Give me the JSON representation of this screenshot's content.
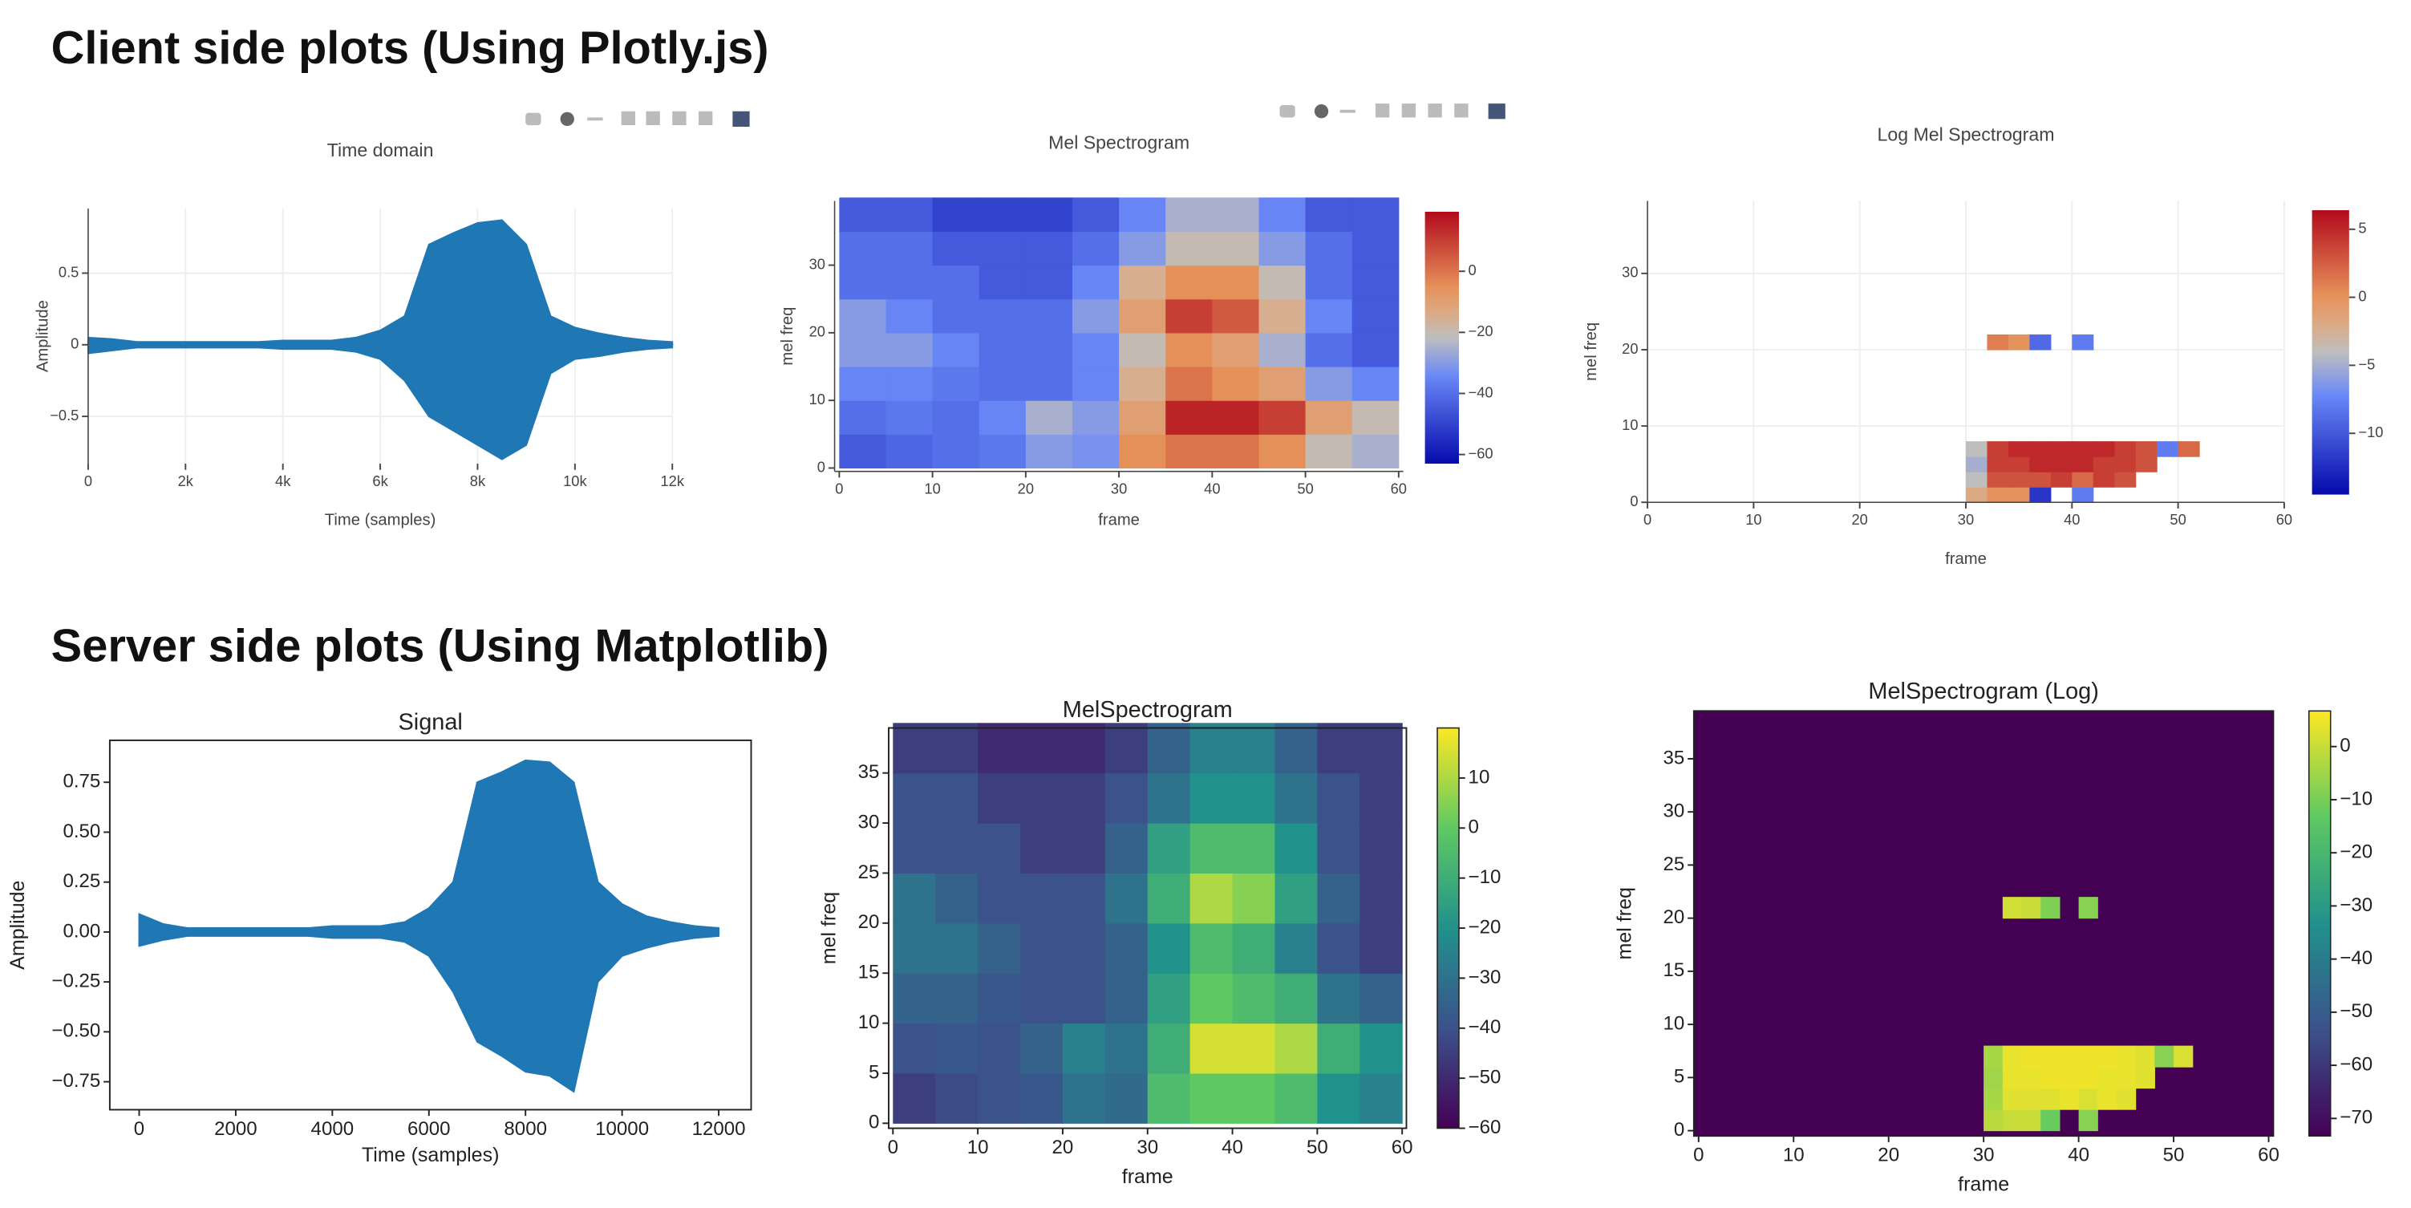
{
  "headings": [
    "Client side plots (Using Plotly.js)",
    "Server side plots (Using Matplotlib)"
  ],
  "chart_data": [
    {
      "type": "area",
      "title": "Time domain",
      "x_label": "Time (samples)",
      "y_label": "Amplitude",
      "grid": true,
      "frame": false,
      "x": [
        0,
        500,
        1000,
        1500,
        2000,
        2500,
        3000,
        3500,
        4000,
        4500,
        5000,
        5500,
        6000,
        6500,
        7000,
        7500,
        8000,
        8500,
        9000,
        9500,
        10000,
        10500,
        11000,
        11500,
        12000
      ],
      "series": [
        {
          "color": "#1f77b4",
          "values": [
            0.05,
            0.04,
            0.02,
            0.02,
            0.02,
            0.02,
            0.02,
            0.02,
            0.03,
            0.03,
            0.03,
            0.05,
            0.1,
            0.2,
            0.7,
            0.78,
            0.85,
            0.87,
            0.7,
            0.2,
            0.12,
            0.08,
            0.05,
            0.03,
            0.02
          ]
        },
        {
          "color": "#1f77b4",
          "values": [
            -0.06,
            -0.04,
            -0.02,
            -0.02,
            -0.02,
            -0.02,
            -0.02,
            -0.02,
            -0.03,
            -0.03,
            -0.03,
            -0.05,
            -0.1,
            -0.25,
            -0.5,
            -0.6,
            -0.7,
            -0.8,
            -0.7,
            -0.2,
            -0.1,
            -0.08,
            -0.05,
            -0.03,
            -0.02
          ]
        }
      ],
      "xlim": [
        0,
        12000
      ],
      "xticks": [
        0,
        {
          "value": 2000,
          "label": "2k"
        },
        {
          "value": 4000,
          "label": "4k"
        },
        {
          "value": 6000,
          "label": "6k"
        },
        {
          "value": 8000,
          "label": "8k"
        },
        {
          "value": 10000,
          "label": "10k"
        },
        {
          "value": 12000,
          "label": "12k"
        }
      ],
      "ylim": [
        -0.83,
        0.95
      ],
      "yticks": [
        {
          "value": -0.5,
          "label": "−0.5"
        },
        0,
        0.5
      ]
    },
    {
      "type": "heatmap",
      "title": "Mel Spectrogram",
      "x_label": "frame",
      "y_label": "mel freq",
      "grid": false,
      "frame": false,
      "colorscale": [
        [
          0,
          "#050aac"
        ],
        [
          0.35,
          "#6a89f7"
        ],
        [
          0.5,
          "#bebebe"
        ],
        [
          0.6,
          "#dcaa84"
        ],
        [
          0.7,
          "#e6915a"
        ],
        [
          1,
          "#b20a1c"
        ]
      ],
      "x": [
        2.5,
        7.5,
        12.5,
        17.5,
        22.5,
        27.5,
        32.5,
        37.5,
        42.5,
        47.5,
        52.5,
        57.5
      ],
      "y": [
        2.5,
        7.5,
        12.5,
        17.5,
        22.5,
        27.5,
        32.5,
        37.5
      ],
      "z": [
        [
          -45,
          -42,
          -40,
          -38,
          -30,
          -32,
          -5,
          0,
          0,
          -5,
          -20,
          -25
        ],
        [
          -40,
          -38,
          -40,
          -35,
          -25,
          -30,
          -10,
          15,
          15,
          10,
          -10,
          -20
        ],
        [
          -35,
          -35,
          -38,
          -40,
          -40,
          -35,
          -15,
          0,
          -5,
          -10,
          -30,
          -35
        ],
        [
          -30,
          -30,
          -35,
          -40,
          -40,
          -35,
          -20,
          -5,
          -10,
          -25,
          -40,
          -45
        ],
        [
          -30,
          -35,
          -40,
          -40,
          -40,
          -30,
          -10,
          10,
          5,
          -15,
          -35,
          -45
        ],
        [
          -40,
          -40,
          -40,
          -45,
          -45,
          -35,
          -15,
          -5,
          -5,
          -20,
          -40,
          -45
        ],
        [
          -40,
          -40,
          -45,
          -45,
          -45,
          -40,
          -30,
          -20,
          -20,
          -30,
          -40,
          -45
        ],
        [
          -45,
          -45,
          -50,
          -50,
          -50,
          -45,
          -35,
          -25,
          -25,
          -35,
          -45,
          -45
        ]
      ],
      "xlim": [
        -0.5,
        60.5
      ],
      "xticks": [
        0,
        10,
        20,
        30,
        40,
        50,
        60
      ],
      "ylim": [
        -0.5,
        39.5
      ],
      "yticks": [
        0,
        10,
        20,
        30
      ],
      "zlim": [
        -63,
        19.5
      ],
      "zticks": [
        0,
        {
          "value": -20,
          "label": "−20"
        },
        {
          "value": -40,
          "label": "−40"
        },
        {
          "value": -60,
          "label": "−60"
        }
      ]
    },
    {
      "type": "heatmap",
      "title": "Log Mel Spectrogram",
      "x_label": "frame",
      "y_label": "mel freq",
      "grid": true,
      "frame": false,
      "colorscale": [
        [
          0,
          "#050aac"
        ],
        [
          0.35,
          "#6a89f7"
        ],
        [
          0.5,
          "#bebebe"
        ],
        [
          0.6,
          "#dcaa84"
        ],
        [
          0.7,
          "#e6915a"
        ],
        [
          1,
          "#b20a1c"
        ]
      ],
      "x": [
        31,
        33,
        35,
        37,
        39,
        41,
        43,
        45,
        47,
        49,
        51,
        53
      ],
      "y": [
        1,
        3,
        5,
        7,
        21
      ],
      "z": [
        [
          -2,
          0,
          0,
          -12,
          null,
          -8,
          null,
          null,
          null,
          null,
          null,
          null
        ],
        [
          -4,
          3,
          3,
          3,
          4,
          2,
          4,
          3,
          null,
          null,
          null,
          null
        ],
        [
          -5,
          4,
          4,
          5,
          5,
          5,
          4,
          4,
          3,
          null,
          null,
          null
        ],
        [
          -4,
          4,
          5,
          5,
          5,
          5,
          5,
          4,
          3,
          -8,
          2,
          null
        ],
        [
          null,
          1,
          0,
          -9,
          null,
          -8,
          null,
          null,
          null,
          null,
          null,
          null
        ]
      ],
      "xlim": [
        0,
        60
      ],
      "xticks": [
        0,
        10,
        20,
        30,
        40,
        50,
        60
      ],
      "ylim": [
        0,
        39.5
      ],
      "yticks": [
        0,
        10,
        20,
        30
      ],
      "zlim": [
        -14.5,
        6.4
      ],
      "zticks": [
        5,
        0,
        {
          "value": -5,
          "label": "−5"
        },
        {
          "value": -10,
          "label": "−10"
        }
      ]
    },
    {
      "type": "area",
      "title": "Signal",
      "x_label": "Time (samples)",
      "y_label": "Amplitude",
      "grid": false,
      "frame": true,
      "x": [
        0,
        500,
        1000,
        1500,
        2000,
        2500,
        3000,
        3500,
        4000,
        4500,
        5000,
        5500,
        6000,
        6500,
        7000,
        7500,
        8000,
        8500,
        9000,
        9500,
        10000,
        10500,
        11000,
        11500,
        12000
      ],
      "series": [
        {
          "color": "#1f77b4",
          "values": [
            0.09,
            0.04,
            0.02,
            0.02,
            0.02,
            0.02,
            0.02,
            0.02,
            0.03,
            0.03,
            0.03,
            0.05,
            0.12,
            0.25,
            0.75,
            0.8,
            0.86,
            0.85,
            0.75,
            0.25,
            0.14,
            0.08,
            0.05,
            0.03,
            0.02
          ]
        },
        {
          "color": "#1f77b4",
          "values": [
            -0.07,
            -0.04,
            -0.02,
            -0.02,
            -0.02,
            -0.02,
            -0.02,
            -0.02,
            -0.03,
            -0.03,
            -0.03,
            -0.05,
            -0.12,
            -0.3,
            -0.55,
            -0.62,
            -0.7,
            -0.72,
            -0.8,
            -0.25,
            -0.12,
            -0.08,
            -0.05,
            -0.03,
            -0.02
          ]
        }
      ],
      "xlim": [
        -608,
        12672
      ],
      "xticks": [
        0,
        2000,
        4000,
        6000,
        8000,
        10000,
        12000
      ],
      "ylim": [
        -0.89,
        0.96
      ],
      "yticks": [
        {
          "value": -0.75,
          "label": "−0.75"
        },
        {
          "value": -0.5,
          "label": "−0.50"
        },
        {
          "value": -0.25,
          "label": "−0.25"
        },
        {
          "value": 0,
          "label": "0.00"
        },
        0.25,
        {
          "value": 0.5,
          "label": "0.50"
        },
        0.75
      ]
    },
    {
      "type": "heatmap",
      "title": "MelSpectrogram",
      "x_label": "frame",
      "y_label": "mel freq",
      "grid": false,
      "frame": true,
      "colorscale": [
        [
          0,
          "#440154"
        ],
        [
          0.25,
          "#3b528b"
        ],
        [
          0.5,
          "#21918c"
        ],
        [
          0.75,
          "#5ec962"
        ],
        [
          1,
          "#fde725"
        ]
      ],
      "x": [
        2.5,
        7.5,
        12.5,
        17.5,
        22.5,
        27.5,
        32.5,
        37.5,
        42.5,
        47.5,
        52.5,
        57.5
      ],
      "y": [
        2.5,
        7.5,
        12.5,
        17.5,
        22.5,
        27.5,
        32.5,
        37.5
      ],
      "z": [
        [
          -45,
          -42,
          -40,
          -38,
          -30,
          -32,
          -5,
          0,
          0,
          -5,
          -20,
          -25
        ],
        [
          -40,
          -38,
          -40,
          -35,
          -25,
          -30,
          -10,
          15,
          15,
          10,
          -10,
          -20
        ],
        [
          -35,
          -35,
          -38,
          -40,
          -40,
          -35,
          -15,
          0,
          -5,
          -10,
          -30,
          -35
        ],
        [
          -30,
          -30,
          -35,
          -40,
          -40,
          -35,
          -20,
          -5,
          -10,
          -25,
          -40,
          -45
        ],
        [
          -30,
          -35,
          -40,
          -40,
          -40,
          -30,
          -10,
          10,
          5,
          -15,
          -35,
          -45
        ],
        [
          -40,
          -40,
          -40,
          -45,
          -45,
          -35,
          -15,
          -5,
          -5,
          -20,
          -40,
          -45
        ],
        [
          -40,
          -40,
          -45,
          -45,
          -45,
          -40,
          -30,
          -20,
          -20,
          -30,
          -40,
          -45
        ],
        [
          -45,
          -45,
          -50,
          -50,
          -50,
          -45,
          -35,
          -25,
          -25,
          -35,
          -45,
          -45
        ]
      ],
      "xlim": [
        -0.5,
        60.5
      ],
      "xticks": [
        0,
        10,
        20,
        30,
        40,
        50,
        60
      ],
      "ylim": [
        -0.5,
        39.5
      ],
      "yticks": [
        0,
        5,
        10,
        15,
        20,
        25,
        30,
        35
      ],
      "zlim": [
        -60,
        20
      ],
      "zticks": [
        10,
        0,
        {
          "value": -10,
          "label": "−10"
        },
        {
          "value": -20,
          "label": "−20"
        },
        {
          "value": -30,
          "label": "−30"
        },
        {
          "value": -40,
          "label": "−40"
        },
        {
          "value": -50,
          "label": "−50"
        },
        {
          "value": -60,
          "label": "−60"
        }
      ]
    },
    {
      "type": "heatmap",
      "title": "MelSpectrogram (Log)",
      "x_label": "frame",
      "y_label": "mel freq",
      "grid": false,
      "frame": true,
      "background": "#440154",
      "colorscale": [
        [
          0,
          "#440154"
        ],
        [
          0.25,
          "#3b528b"
        ],
        [
          0.5,
          "#21918c"
        ],
        [
          0.75,
          "#5ec962"
        ],
        [
          1,
          "#fde725"
        ]
      ],
      "x": [
        31,
        33,
        35,
        37,
        39,
        41,
        43,
        45,
        47,
        49,
        51,
        53
      ],
      "y": [
        1,
        3,
        5,
        7,
        21
      ],
      "z": [
        [
          -2,
          0,
          0,
          -12,
          null,
          -8,
          null,
          null,
          null,
          null,
          null,
          null
        ],
        [
          -4,
          3,
          3,
          3,
          4,
          2,
          4,
          3,
          null,
          null,
          null,
          null
        ],
        [
          -5,
          4,
          4,
          5,
          5,
          5,
          4,
          4,
          3,
          null,
          null,
          null
        ],
        [
          -4,
          4,
          5,
          5,
          5,
          5,
          5,
          4,
          3,
          -8,
          2,
          null
        ],
        [
          null,
          1,
          0,
          -9,
          null,
          -8,
          null,
          null,
          null,
          null,
          null,
          null
        ]
      ],
      "xlim": [
        -0.5,
        60.5
      ],
      "xticks": [
        0,
        10,
        20,
        30,
        40,
        50,
        60
      ],
      "ylim": [
        -0.5,
        39.5
      ],
      "yticks": [
        0,
        5,
        10,
        15,
        20,
        25,
        30,
        35
      ],
      "zlim": [
        -73.3,
        6.7
      ],
      "zticks": [
        0,
        {
          "value": -10,
          "label": "−10"
        },
        {
          "value": -20,
          "label": "−20"
        },
        {
          "value": -30,
          "label": "−30"
        },
        {
          "value": -40,
          "label": "−40"
        },
        {
          "value": -50,
          "label": "−50"
        },
        {
          "value": -60,
          "label": "−60"
        },
        {
          "value": -70,
          "label": "−70"
        }
      ]
    }
  ]
}
